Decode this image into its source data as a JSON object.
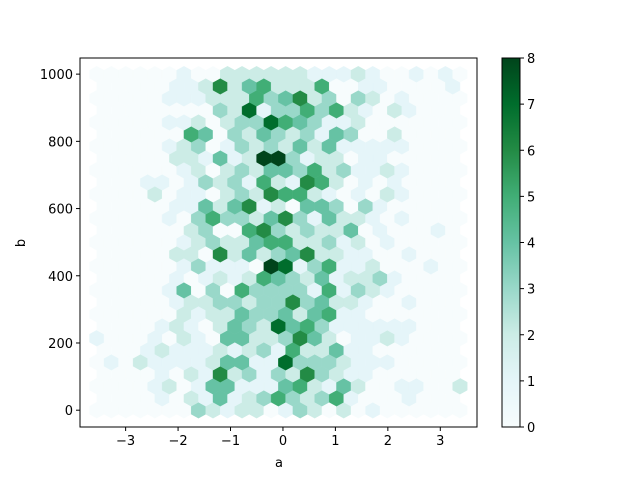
{
  "chart_data": {
    "type": "heatmap",
    "subtype": "hexbin",
    "title": "",
    "xlabel": "a",
    "ylabel": "b",
    "xlim": [
      -3.87,
      3.7
    ],
    "ylim": [
      -50,
      1048
    ],
    "x_ticks": [
      -3,
      -2,
      -1,
      0,
      1,
      2,
      3
    ],
    "x_tick_labels": [
      "−3",
      "−2",
      "−1",
      "0",
      "1",
      "2",
      "3"
    ],
    "y_ticks": [
      0,
      200,
      400,
      600,
      800,
      1000
    ],
    "y_tick_labels": [
      "0",
      "200",
      "400",
      "600",
      "800",
      "1000"
    ],
    "gridsize": 25,
    "grid": false,
    "colormap": "BuGn",
    "colormap_stops": [
      "#f7fcfd",
      "#e5f5f9",
      "#ccece6",
      "#99d8c9",
      "#66c2a4",
      "#41ae76",
      "#238b45",
      "#006d2c",
      "#00441b"
    ],
    "colorbar": {
      "range": [
        0,
        8
      ],
      "ticks": [
        0,
        1,
        2,
        3,
        4,
        5,
        6,
        7,
        8
      ],
      "tick_labels": [
        "0",
        "1",
        "2",
        "3",
        "4",
        "5",
        "6",
        "7",
        "8"
      ],
      "placement": "right"
    },
    "counts_rows_bottom_to_top": [
      [
        0,
        0,
        0,
        0,
        0,
        0,
        0,
        3,
        2,
        1,
        2,
        2,
        0,
        1,
        3,
        2,
        0,
        2,
        0,
        1,
        0,
        0,
        0,
        0,
        0,
        0
      ],
      [
        0,
        0,
        0,
        0,
        1,
        0,
        2,
        1,
        4,
        1,
        2,
        3,
        5,
        3,
        2,
        3,
        5,
        1,
        0,
        0,
        0,
        1,
        0,
        0,
        0
      ],
      [
        0,
        0,
        0,
        0,
        1,
        2,
        0,
        1,
        4,
        4,
        1,
        1,
        1,
        4,
        5,
        2,
        1,
        4,
        2,
        0,
        0,
        1,
        1,
        0,
        0,
        2
      ],
      [
        0,
        0,
        0,
        0,
        1,
        0,
        2,
        1,
        6,
        2,
        3,
        1,
        3,
        2,
        6,
        3,
        2,
        1,
        1,
        0,
        0,
        0,
        0,
        0,
        0
      ],
      [
        0,
        1,
        0,
        2,
        1,
        1,
        1,
        1,
        2,
        4,
        4,
        1,
        1,
        7,
        3,
        3,
        3,
        2,
        1,
        1,
        1,
        0,
        0,
        0,
        0,
        0
      ],
      [
        0,
        0,
        0,
        1,
        2,
        1,
        1,
        1,
        2,
        1,
        2,
        3,
        1,
        5,
        2,
        2,
        4,
        1,
        1,
        0,
        0,
        0,
        0,
        0,
        0
      ],
      [
        1,
        0,
        0,
        0,
        1,
        0,
        2,
        1,
        0,
        4,
        4,
        2,
        2,
        3,
        6,
        4,
        2,
        0,
        1,
        1,
        2,
        1,
        0,
        0,
        0,
        0
      ],
      [
        0,
        0,
        0,
        0,
        1,
        2,
        1,
        0,
        2,
        4,
        3,
        2,
        7,
        4,
        5,
        3,
        1,
        1,
        1,
        1,
        1,
        1,
        0,
        0,
        0
      ],
      [
        0,
        0,
        0,
        0,
        0,
        0,
        2,
        1,
        2,
        2,
        4,
        3,
        3,
        4,
        2,
        4,
        5,
        1,
        1,
        0,
        0,
        0,
        0,
        0,
        0,
        0
      ],
      [
        0,
        0,
        0,
        0,
        0,
        1,
        2,
        2,
        3,
        3,
        2,
        3,
        3,
        6,
        3,
        4,
        2,
        2,
        1,
        0,
        0,
        1,
        0,
        0,
        0
      ],
      [
        0,
        0,
        0,
        0,
        0,
        1,
        4,
        0,
        3,
        0,
        5,
        3,
        3,
        3,
        3,
        1,
        5,
        1,
        3,
        2,
        1,
        0,
        0,
        0,
        0,
        0
      ],
      [
        0,
        0,
        0,
        0,
        0,
        1,
        0,
        1,
        2,
        1,
        2,
        5,
        4,
        3,
        2,
        4,
        1,
        2,
        2,
        3,
        1,
        0,
        0,
        0,
        0
      ],
      [
        0,
        0,
        0,
        0,
        0,
        0,
        1,
        3,
        1,
        1,
        1,
        0,
        8,
        7,
        1,
        3,
        5,
        1,
        1,
        2,
        0,
        0,
        0,
        1,
        0,
        0
      ],
      [
        0,
        0,
        0,
        0,
        0,
        2,
        2,
        0,
        6,
        2,
        4,
        2,
        3,
        4,
        6,
        2,
        2,
        1,
        1,
        0,
        0,
        1,
        0,
        0,
        0
      ],
      [
        0,
        0,
        0,
        0,
        0,
        0,
        1,
        2,
        3,
        2,
        2,
        4,
        5,
        5,
        2,
        2,
        3,
        1,
        2,
        0,
        1,
        0,
        0,
        0,
        0,
        0
      ],
      [
        0,
        0,
        0,
        0,
        0,
        0,
        2,
        3,
        0,
        0,
        5,
        6,
        3,
        2,
        3,
        2,
        2,
        4,
        0,
        1,
        0,
        0,
        0,
        1,
        0
      ],
      [
        0,
        0,
        0,
        0,
        0,
        1,
        0,
        3,
        5,
        3,
        3,
        2,
        4,
        6,
        3,
        1,
        4,
        2,
        2,
        1,
        0,
        1,
        0,
        0,
        0,
        0
      ],
      [
        0,
        0,
        0,
        0,
        0,
        1,
        1,
        4,
        2,
        4,
        6,
        1,
        2,
        0,
        4,
        4,
        3,
        0,
        3,
        1,
        0,
        0,
        0,
        0,
        0
      ],
      [
        0,
        0,
        0,
        0,
        2,
        0,
        1,
        1,
        0,
        2,
        3,
        2,
        6,
        5,
        5,
        2,
        1,
        0,
        1,
        0,
        2,
        1,
        0,
        0,
        0,
        0
      ],
      [
        0,
        0,
        0,
        1,
        1,
        0,
        1,
        3,
        2,
        3,
        1,
        5,
        2,
        1,
        6,
        5,
        2,
        0,
        1,
        0,
        1,
        0,
        0,
        0,
        0
      ],
      [
        0,
        0,
        0,
        0,
        0,
        0,
        1,
        2,
        0,
        2,
        3,
        2,
        4,
        4,
        3,
        5,
        2,
        3,
        1,
        1,
        2,
        1,
        0,
        0,
        0,
        0
      ],
      [
        0,
        0,
        0,
        0,
        0,
        2,
        2,
        1,
        4,
        1,
        2,
        8,
        8,
        3,
        1,
        2,
        2,
        0,
        1,
        1,
        0,
        0,
        0,
        0,
        0
      ],
      [
        0,
        0,
        0,
        0,
        0,
        1,
        2,
        3,
        0,
        1,
        3,
        2,
        3,
        2,
        4,
        2,
        4,
        1,
        1,
        1,
        1,
        1,
        0,
        0,
        0,
        0
      ],
      [
        0,
        0,
        0,
        0,
        0,
        0,
        5,
        4,
        0,
        3,
        2,
        4,
        3,
        2,
        3,
        1,
        4,
        3,
        0,
        0,
        2,
        0,
        0,
        0,
        0
      ],
      [
        0,
        0,
        0,
        0,
        0,
        1,
        1,
        2,
        0,
        2,
        3,
        3,
        7,
        5,
        4,
        3,
        1,
        1,
        2,
        0,
        0,
        0,
        0,
        0,
        0,
        0
      ],
      [
        0,
        0,
        0,
        0,
        0,
        0,
        0,
        0,
        3,
        2,
        7,
        1,
        3,
        3,
        5,
        3,
        5,
        2,
        1,
        0,
        2,
        1,
        0,
        0,
        0
      ],
      [
        0,
        0,
        0,
        0,
        0,
        1,
        1,
        1,
        2,
        2,
        2,
        5,
        3,
        4,
        6,
        2,
        3,
        0,
        3,
        2,
        0,
        1,
        0,
        0,
        0,
        0
      ],
      [
        0,
        0,
        0,
        0,
        0,
        1,
        1,
        2,
        6,
        2,
        4,
        5,
        2,
        2,
        2,
        5,
        0,
        0,
        1,
        1,
        0,
        0,
        0,
        0,
        1
      ],
      [
        0,
        0,
        0,
        0,
        0,
        0,
        1,
        0,
        0,
        2,
        2,
        2,
        2,
        2,
        2,
        1,
        1,
        1,
        2,
        1,
        0,
        0,
        1,
        0,
        1,
        0
      ]
    ]
  }
}
